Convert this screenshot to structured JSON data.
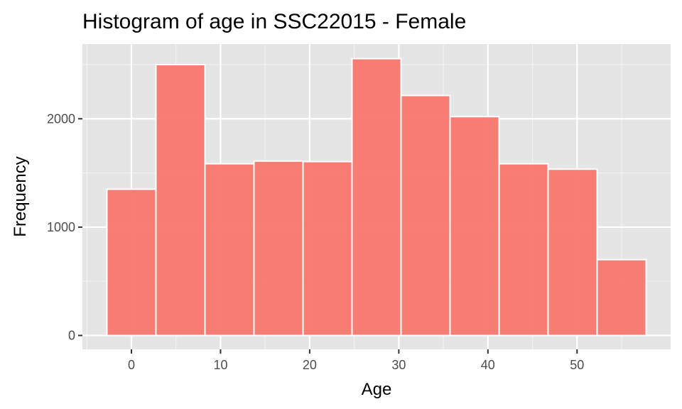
{
  "chart_data": {
    "type": "bar",
    "title": "Histogram of age in SSC22015 - Female",
    "xlabel": "Age",
    "ylabel": "Frequency",
    "bin_width": 5.5,
    "bins": [
      {
        "x_start": -2.75,
        "x_end": 2.75,
        "value": 1350
      },
      {
        "x_start": 2.75,
        "x_end": 8.25,
        "value": 2500
      },
      {
        "x_start": 8.25,
        "x_end": 13.75,
        "value": 1585
      },
      {
        "x_start": 13.75,
        "x_end": 19.25,
        "value": 1610
      },
      {
        "x_start": 19.25,
        "x_end": 24.75,
        "value": 1605
      },
      {
        "x_start": 24.75,
        "x_end": 30.25,
        "value": 2555
      },
      {
        "x_start": 30.25,
        "x_end": 35.75,
        "value": 2215
      },
      {
        "x_start": 35.75,
        "x_end": 41.25,
        "value": 2020
      },
      {
        "x_start": 41.25,
        "x_end": 46.75,
        "value": 1585
      },
      {
        "x_start": 46.75,
        "x_end": 52.25,
        "value": 1535
      },
      {
        "x_start": 52.25,
        "x_end": 57.75,
        "value": 700
      }
    ],
    "xlim": [
      -5.5,
      60.5
    ],
    "ylim": [
      -128,
      2690
    ],
    "x_ticks": [
      0,
      10,
      20,
      30,
      40,
      50
    ],
    "x_tick_labels": [
      "0",
      "10",
      "20",
      "30",
      "40",
      "50"
    ],
    "y_ticks": [
      0,
      1000,
      2000
    ],
    "y_tick_labels": [
      "0",
      "1000",
      "2000"
    ],
    "grid": true,
    "legend": "none",
    "colors": {
      "bar_fill": "#F8766D",
      "bar_stroke": "#ffffff",
      "panel_background": "#E5E5E5",
      "grid_major": "#ffffff",
      "grid_minor": "#F2F2F2",
      "tick_label": "#4d4d4d",
      "axis_tick": "#333333"
    }
  }
}
